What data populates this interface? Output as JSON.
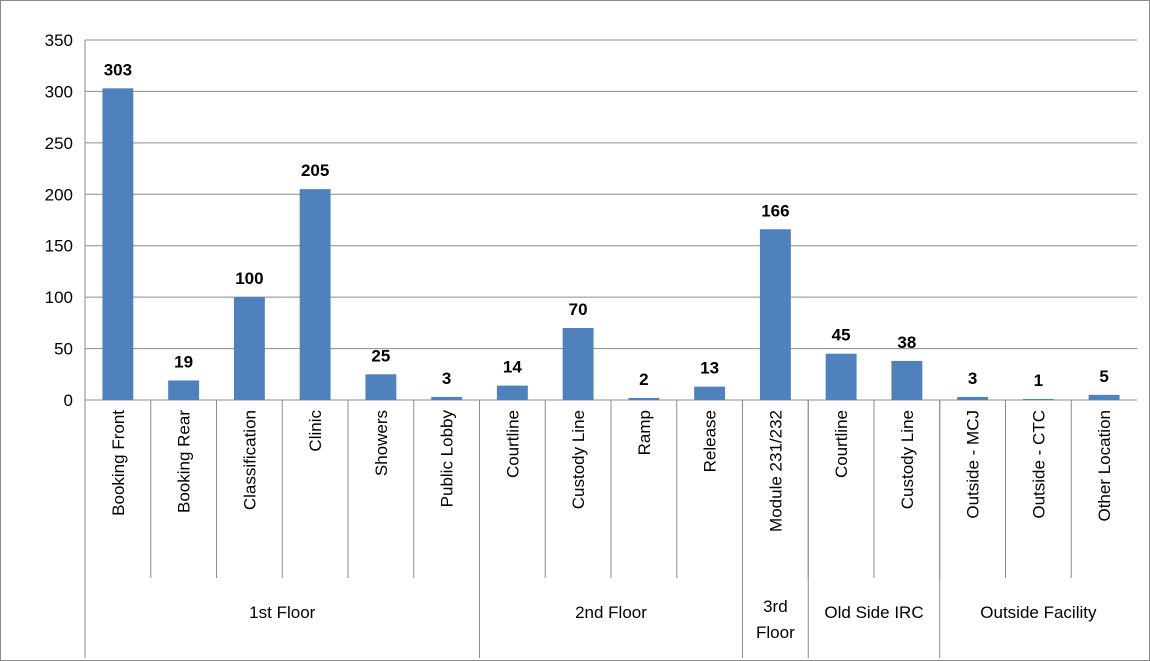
{
  "chart_data": {
    "type": "bar",
    "title": "",
    "xlabel": "",
    "ylabel": "",
    "ylim": [
      0,
      350
    ],
    "y_ticks": [
      0,
      50,
      100,
      150,
      200,
      250,
      300,
      350
    ],
    "grid": true,
    "legend": "none",
    "bar_color": "#4f81bd",
    "categories": [
      "Booking Front",
      "Booking Rear",
      "Classification",
      "Clinic",
      "Showers",
      "Public Lobby",
      "Courtline",
      "Custody Line",
      "Ramp",
      "Release",
      "Module 231/232",
      "Courtline",
      "Custody Line",
      "Outside - MCJ",
      "Outside - CTC",
      "Other Location"
    ],
    "values": [
      303,
      19,
      100,
      205,
      25,
      3,
      14,
      70,
      2,
      13,
      166,
      45,
      38,
      3,
      1,
      5
    ],
    "groups": [
      {
        "label": "1st Floor",
        "count": 6
      },
      {
        "label": "2nd Floor",
        "count": 4
      },
      {
        "label": "3rd Floor",
        "count": 1
      },
      {
        "label": "Old Side IRC",
        "count": 2
      },
      {
        "label": "Outside Facility",
        "count": 3
      }
    ]
  }
}
